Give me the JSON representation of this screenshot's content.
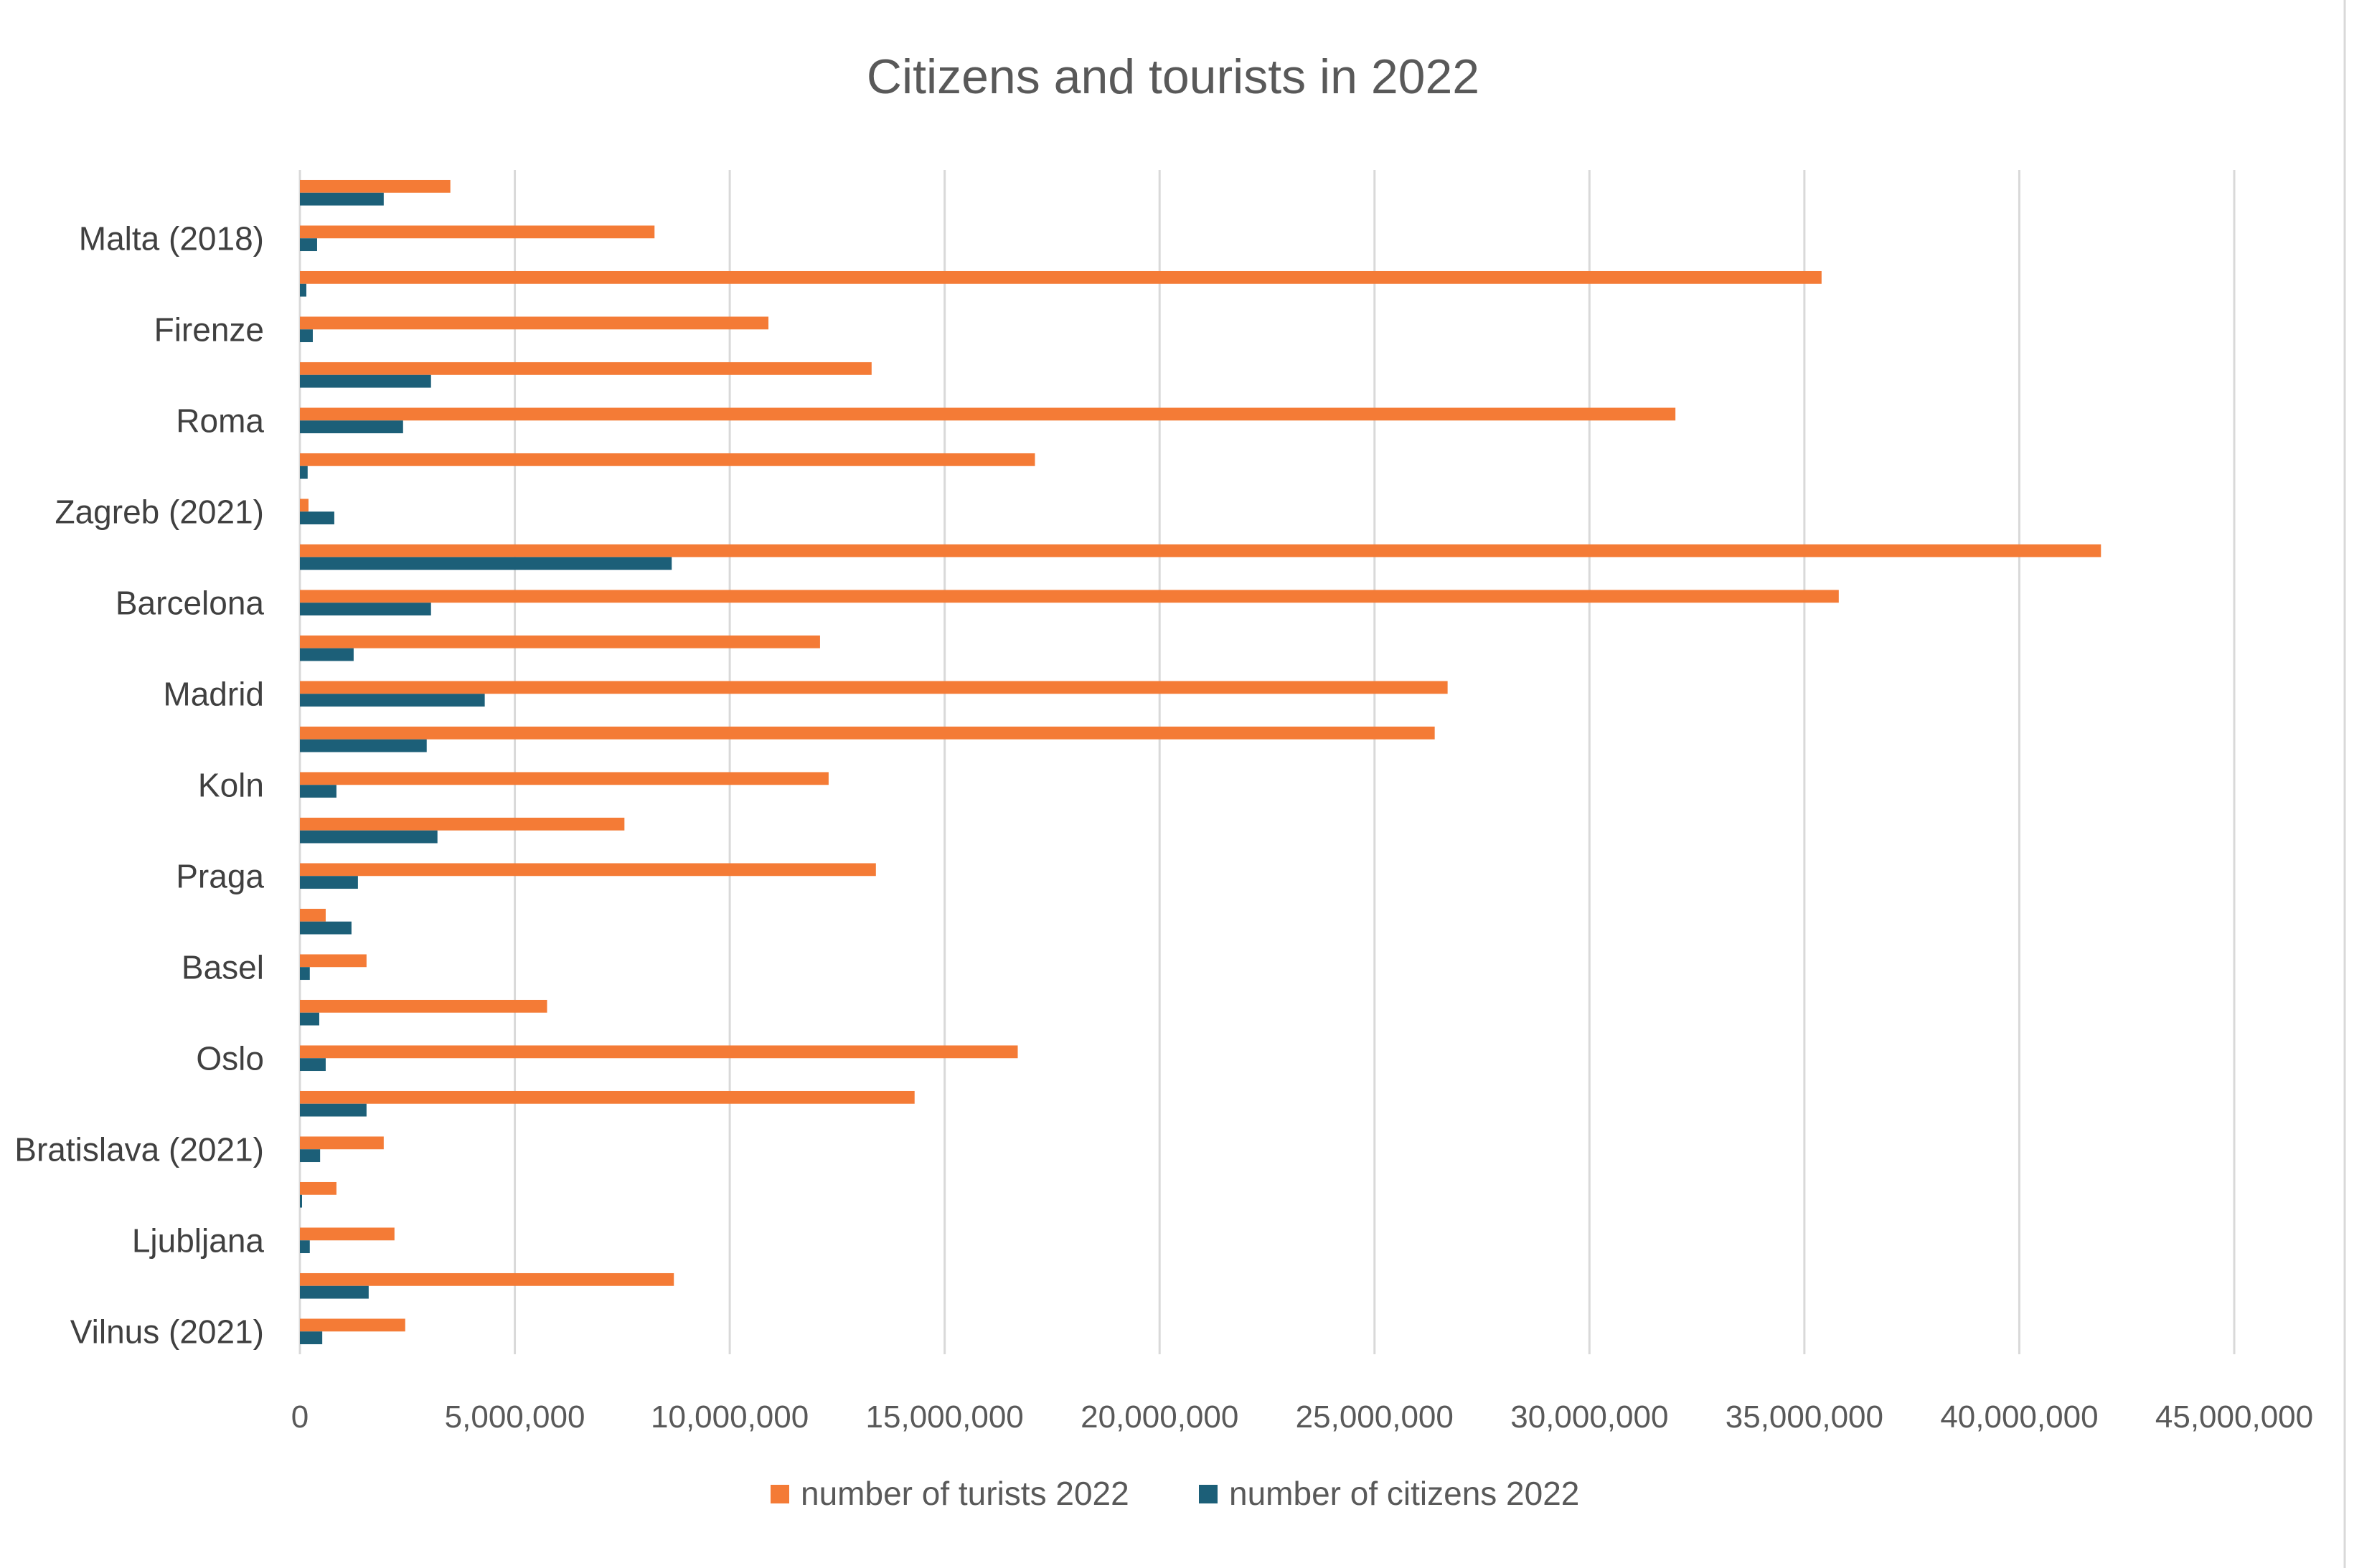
{
  "chart_data": {
    "type": "bar",
    "orientation": "horizontal",
    "title": "Citizens and tourists in 2022",
    "xlabel": "",
    "ylabel": "",
    "xlim": [
      0,
      45000000
    ],
    "x_ticks": [
      0,
      5000000,
      10000000,
      15000000,
      20000000,
      25000000,
      30000000,
      35000000,
      40000000,
      45000000
    ],
    "x_tick_labels": [
      "0",
      "5,000,000",
      "10,000,000",
      "15,000,000",
      "20,000,000",
      "25,000,000",
      "30,000,000",
      "35,000,000",
      "40,000,000",
      "45,000,000"
    ],
    "grid": true,
    "legend_position": "bottom",
    "categories": [
      "",
      "Malta (2018)",
      "",
      "Firenze",
      "",
      "Roma",
      "",
      "Zagreb (2021)",
      "",
      "Barcelona",
      "",
      "Madrid",
      "",
      "Koln",
      "",
      "Praga",
      "",
      "Basel",
      "",
      "Oslo",
      "",
      "Bratislava (2021)",
      "",
      "Ljubljana",
      "",
      "Vilnus (2021)"
    ],
    "series": [
      {
        "name": "number of turists 2022",
        "color": "#f47b36",
        "values": [
          3500000,
          8250000,
          35400000,
          10900000,
          13300000,
          32000000,
          17100000,
          200000,
          41900000,
          35800000,
          12100000,
          26700000,
          26400000,
          12300000,
          7550000,
          13400000,
          600000,
          1550000,
          5750000,
          16700000,
          14300000,
          1950000,
          850000,
          2200000,
          8700000,
          2450000
        ]
      },
      {
        "name": "number of citizens 2022",
        "color": "#1c5f78",
        "values": [
          1950000,
          400000,
          150000,
          300000,
          3050000,
          2400000,
          180000,
          800000,
          8650000,
          3050000,
          1250000,
          4300000,
          2950000,
          850000,
          3200000,
          1350000,
          1200000,
          230000,
          450000,
          600000,
          1550000,
          470000,
          50000,
          230000,
          1600000,
          520000
        ]
      }
    ]
  }
}
